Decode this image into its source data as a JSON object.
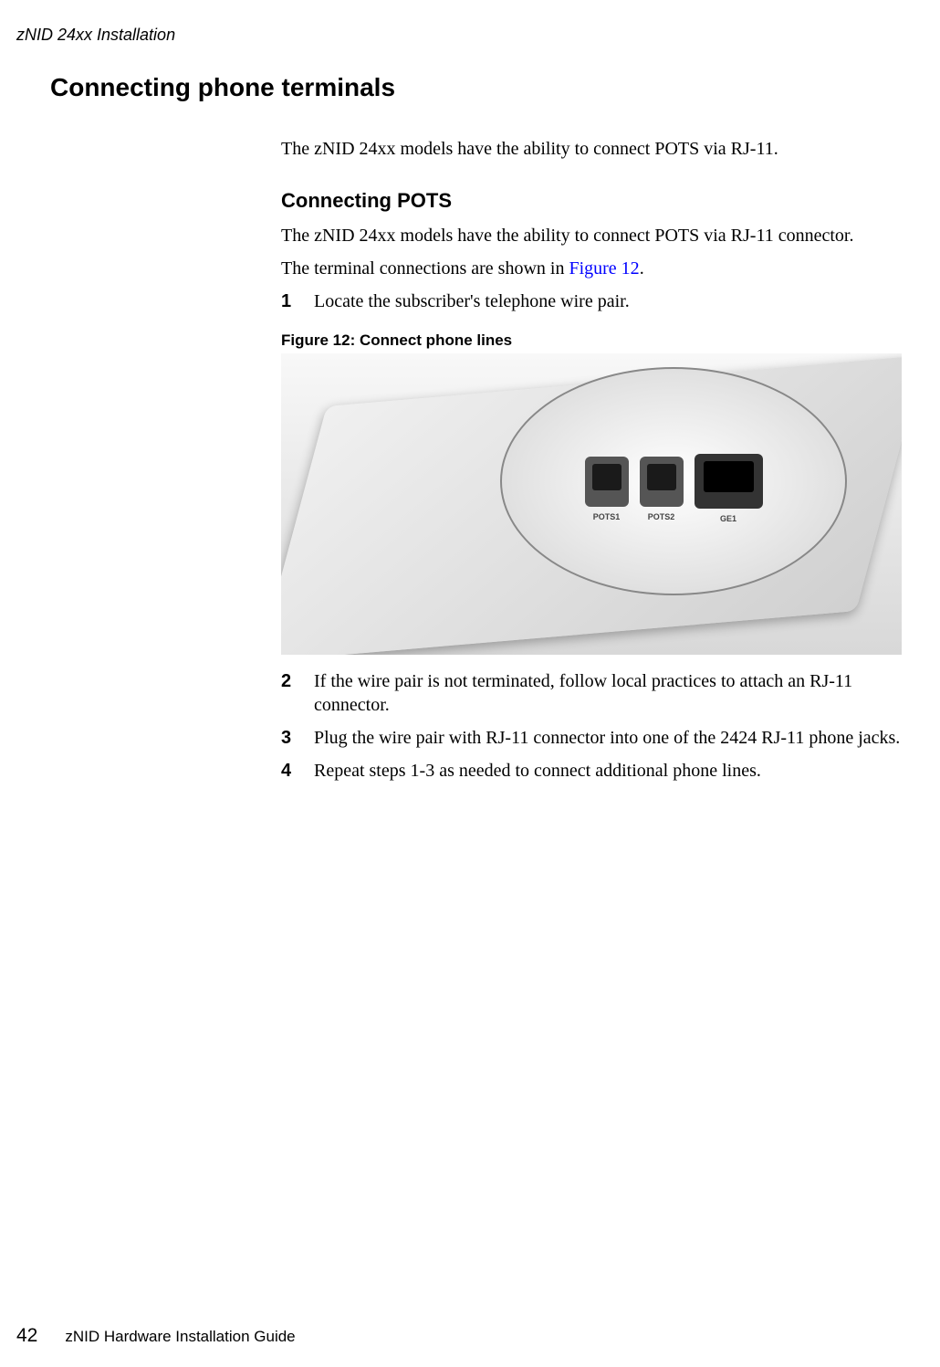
{
  "header": {
    "running_title": "zNID 24xx Installation"
  },
  "main": {
    "heading": "Connecting phone terminals",
    "intro": "The zNID 24xx models have the ability to connect POTS via RJ-11.",
    "subsection": {
      "heading": "Connecting POTS",
      "para1": "The zNID 24xx models have the ability to connect POTS via RJ-11 connector.",
      "para2_prefix": "The terminal connections are shown in ",
      "para2_link": "Figure 12",
      "para2_suffix": ".",
      "steps": [
        {
          "num": "1",
          "text": "Locate the subscriber's telephone wire pair."
        }
      ],
      "figure": {
        "caption": "Figure 12:  Connect phone lines",
        "port_labels": {
          "pots1": "POTS1",
          "pots2": "POTS2",
          "ge1": "GE1"
        }
      },
      "steps_after": [
        {
          "num": "2",
          "text": "If the wire pair is not terminated, follow local practices to attach an RJ-11 connector."
        },
        {
          "num": "3",
          "text": "Plug the wire pair with RJ-11 connector into one of the 2424 RJ-11 phone jacks."
        },
        {
          "num": "4",
          "text": "Repeat steps 1-3 as needed to connect additional phone lines."
        }
      ]
    }
  },
  "footer": {
    "page_number": "42",
    "guide_name": "zNID Hardware Installation Guide"
  },
  "colors": {
    "link_color": "#0000ff",
    "text_color": "#000000",
    "background": "#ffffff"
  }
}
